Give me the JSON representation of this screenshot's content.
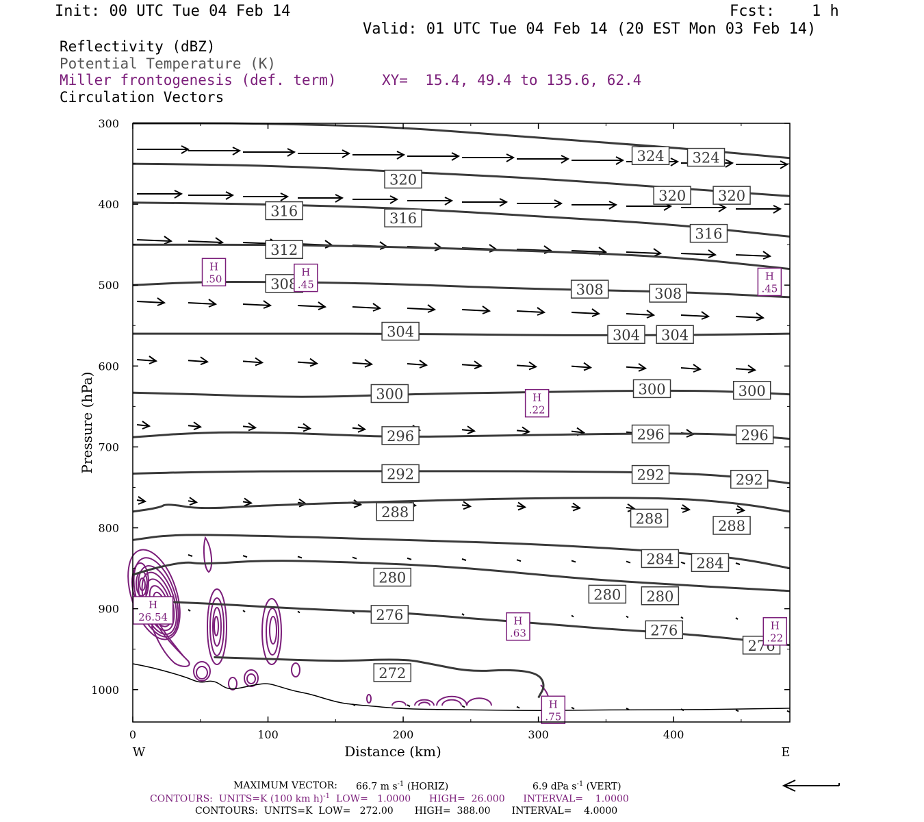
{
  "header": {
    "init": "Init: 00 UTC Tue 04 Feb 14",
    "fcst_label": "Fcst:",
    "fcst_value": "1 h",
    "valid": "Valid: 01 UTC Tue 04 Feb 14 (20 EST Mon 03 Feb 14)"
  },
  "legend": {
    "reflectivity": "Reflectivity (dBZ)",
    "theta": "Potential Temperature (K)",
    "frontogenesis": "Miller frontogenesis (def. term)",
    "xy": "XY=  15.4, 49.4 to 135.6, 62.4",
    "vectors": "Circulation Vectors"
  },
  "colors": {
    "frontogenesis": "#7b1e7a",
    "theta": "#3a3a3a",
    "theta_legend": "#555555",
    "vectors": "#000000"
  },
  "footer": {
    "max_vector_label": "MAXIMUM VECTOR:",
    "max_vector_horiz": "66.7 m s",
    "horiz_tag": "(HORIZ)",
    "max_vector_vert": "6.9 dPa s",
    "vert_tag": "(VERT)",
    "exp": "-1",
    "contours1_a": "CONTOURS:  UNITS=K (100 km h)",
    "contours1_b": "LOW=   1.0000      HIGH=  26.000      INTERVAL=    1.0000",
    "contours2": "CONTOURS:  UNITS=K  LOW=   272.00       HIGH=  388.00       INTERVAL=    4.0000"
  },
  "chart_data": {
    "type": "cross-section",
    "xlabel": "Distance (km)",
    "ylabel": "Pressure (hPa)",
    "xlim": [
      0,
      486
    ],
    "ylim": [
      300,
      1040
    ],
    "x_ticks": [
      0,
      100,
      200,
      300,
      400
    ],
    "y_ticks": [
      300,
      400,
      500,
      600,
      700,
      800,
      900,
      1000
    ],
    "x_end_labels": [
      "W",
      "E"
    ],
    "theta_contours": [
      {
        "value": 272,
        "points": [
          [
            60,
            960
          ],
          [
            100,
            962
          ],
          [
            150,
            965
          ],
          [
            200,
            962
          ],
          [
            220,
            968
          ],
          [
            250,
            978
          ],
          [
            280,
            975
          ],
          [
            300,
            980
          ],
          [
            305,
            995
          ],
          [
            300,
            1010
          ]
        ]
      },
      {
        "value": 276,
        "points": [
          [
            0,
            890
          ],
          [
            50,
            893
          ],
          [
            100,
            898
          ],
          [
            150,
            902
          ],
          [
            200,
            905
          ],
          [
            250,
            912
          ],
          [
            300,
            918
          ],
          [
            350,
            925
          ],
          [
            400,
            930
          ],
          [
            450,
            938
          ],
          [
            486,
            945
          ]
        ]
      },
      {
        "value": 280,
        "points": [
          [
            0,
            858
          ],
          [
            20,
            848
          ],
          [
            40,
            842
          ],
          [
            50,
            845
          ],
          [
            100,
            840
          ],
          [
            150,
            842
          ],
          [
            200,
            845
          ],
          [
            250,
            850
          ],
          [
            300,
            858
          ],
          [
            350,
            865
          ],
          [
            400,
            870
          ],
          [
            450,
            875
          ],
          [
            486,
            878
          ]
        ]
      },
      {
        "value": 284,
        "points": [
          [
            0,
            815
          ],
          [
            30,
            808
          ],
          [
            100,
            810
          ],
          [
            200,
            815
          ],
          [
            300,
            820
          ],
          [
            400,
            830
          ],
          [
            450,
            838
          ],
          [
            486,
            850
          ]
        ]
      },
      {
        "value": 288,
        "points": [
          [
            0,
            780
          ],
          [
            20,
            775
          ],
          [
            25,
            770
          ],
          [
            50,
            777
          ],
          [
            100,
            772
          ],
          [
            200,
            767
          ],
          [
            300,
            763
          ],
          [
            400,
            763
          ],
          [
            450,
            770
          ],
          [
            486,
            780
          ]
        ]
      },
      {
        "value": 292,
        "points": [
          [
            0,
            733
          ],
          [
            50,
            731
          ],
          [
            100,
            730
          ],
          [
            200,
            730
          ],
          [
            300,
            730
          ],
          [
            400,
            732
          ],
          [
            450,
            737
          ],
          [
            486,
            745
          ]
        ]
      },
      {
        "value": 296,
        "points": [
          [
            0,
            688
          ],
          [
            50,
            682
          ],
          [
            100,
            682
          ],
          [
            150,
            685
          ],
          [
            200,
            688
          ],
          [
            300,
            685
          ],
          [
            400,
            683
          ],
          [
            450,
            685
          ],
          [
            486,
            690
          ]
        ]
      },
      {
        "value": 300,
        "points": [
          [
            0,
            633
          ],
          [
            50,
            635
          ],
          [
            100,
            638
          ],
          [
            150,
            638
          ],
          [
            200,
            635
          ],
          [
            300,
            632
          ],
          [
            400,
            630
          ],
          [
            450,
            632
          ],
          [
            486,
            635
          ]
        ]
      },
      {
        "value": 304,
        "points": [
          [
            0,
            560
          ],
          [
            100,
            560
          ],
          [
            200,
            560
          ],
          [
            300,
            562
          ],
          [
            400,
            562
          ],
          [
            486,
            560
          ]
        ]
      },
      {
        "value": 308,
        "points": [
          [
            0,
            500
          ],
          [
            50,
            496
          ],
          [
            100,
            496
          ],
          [
            150,
            497
          ],
          [
            200,
            499
          ],
          [
            300,
            505
          ],
          [
            400,
            508
          ],
          [
            486,
            515
          ]
        ]
      },
      {
        "value": 312,
        "points": [
          [
            0,
            450
          ],
          [
            100,
            450
          ],
          [
            200,
            453
          ],
          [
            300,
            458
          ],
          [
            400,
            465
          ],
          [
            486,
            480
          ]
        ]
      },
      {
        "value": 316,
        "points": [
          [
            0,
            398
          ],
          [
            100,
            400
          ],
          [
            200,
            405
          ],
          [
            300,
            415
          ],
          [
            400,
            425
          ],
          [
            486,
            440
          ]
        ]
      },
      {
        "value": 320,
        "points": [
          [
            0,
            350
          ],
          [
            100,
            352
          ],
          [
            200,
            360
          ],
          [
            300,
            368
          ],
          [
            400,
            380
          ],
          [
            486,
            390
          ]
        ]
      },
      {
        "value": 324,
        "points": [
          [
            0,
            300
          ],
          [
            100,
            300
          ],
          [
            200,
            305
          ],
          [
            300,
            318
          ],
          [
            400,
            330
          ],
          [
            486,
            343
          ]
        ]
      }
    ],
    "theta_labels": [
      {
        "value": 324,
        "x": 383,
        "p": 340
      },
      {
        "value": 324,
        "x": 424,
        "p": 342
      },
      {
        "value": 320,
        "x": 200,
        "p": 369
      },
      {
        "value": 320,
        "x": 399,
        "p": 389
      },
      {
        "value": 320,
        "x": 443,
        "p": 389
      },
      {
        "value": 316,
        "x": 112,
        "p": 408
      },
      {
        "value": 316,
        "x": 200,
        "p": 417
      },
      {
        "value": 316,
        "x": 426,
        "p": 436
      },
      {
        "value": 312,
        "x": 112,
        "p": 456
      },
      {
        "value": 308,
        "x": 112,
        "p": 498
      },
      {
        "value": 308,
        "x": 338,
        "p": 505
      },
      {
        "value": 308,
        "x": 396,
        "p": 510
      },
      {
        "value": 304,
        "x": 198,
        "p": 557
      },
      {
        "value": 304,
        "x": 365,
        "p": 561
      },
      {
        "value": 304,
        "x": 401,
        "p": 561
      },
      {
        "value": 300,
        "x": 190,
        "p": 634
      },
      {
        "value": 300,
        "x": 384,
        "p": 628
      },
      {
        "value": 300,
        "x": 458,
        "p": 630
      },
      {
        "value": 296,
        "x": 198,
        "p": 686
      },
      {
        "value": 296,
        "x": 383,
        "p": 684
      },
      {
        "value": 296,
        "x": 460,
        "p": 685
      },
      {
        "value": 292,
        "x": 198,
        "p": 733
      },
      {
        "value": 292,
        "x": 383,
        "p": 734
      },
      {
        "value": 292,
        "x": 456,
        "p": 740
      },
      {
        "value": 288,
        "x": 194,
        "p": 780
      },
      {
        "value": 288,
        "x": 382,
        "p": 788
      },
      {
        "value": 288,
        "x": 443,
        "p": 797
      },
      {
        "value": 284,
        "x": 390,
        "p": 838
      },
      {
        "value": 284,
        "x": 427,
        "p": 843
      },
      {
        "value": 280,
        "x": 192,
        "p": 861
      },
      {
        "value": 280,
        "x": 351,
        "p": 882
      },
      {
        "value": 280,
        "x": 390,
        "p": 884
      },
      {
        "value": 276,
        "x": 190,
        "p": 907
      },
      {
        "value": 276,
        "x": 393,
        "p": 926
      },
      {
        "value": 276,
        "x": 465,
        "p": 945
      },
      {
        "value": 272,
        "x": 192,
        "p": 979
      }
    ],
    "frontogenesis_highs": [
      {
        "label": "H",
        "value": ".50",
        "x": 60,
        "p": 484
      },
      {
        "label": "H",
        "value": ".45",
        "x": 128,
        "p": 491
      },
      {
        "label": "H",
        "value": ".45",
        "x": 471,
        "p": 496
      },
      {
        "label": "H",
        "value": ".22",
        "x": 299,
        "p": 646
      },
      {
        "label": "H",
        "value": "26.54",
        "x": 15,
        "p": 902
      },
      {
        "label": "H",
        "value": ".63",
        "x": 285,
        "p": 922
      },
      {
        "label": "H",
        "value": ".22",
        "x": 475,
        "p": 928
      },
      {
        "label": "H",
        "value": ".75",
        "x": 311,
        "p": 1025
      }
    ],
    "max_vector": {
      "horiz_m_s": 66.7,
      "vert_dPa_s": 6.9
    }
  }
}
